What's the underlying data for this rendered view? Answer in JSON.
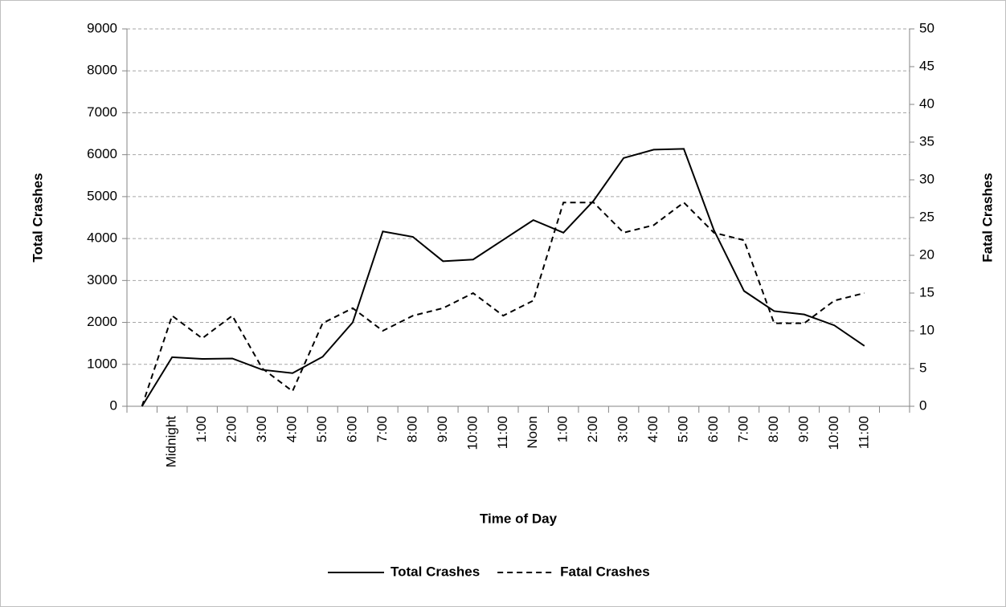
{
  "chart_data": {
    "type": "line",
    "x_label": "Time of Day",
    "y_label": "Total Crashes",
    "y2_label": "Fatal Crashes",
    "categories": [
      null,
      "Midnight",
      "1:00",
      "2:00",
      "3:00",
      "4:00",
      "5:00",
      "6:00",
      "7:00",
      "8:00",
      "9:00",
      "10:00",
      "11:00",
      "Noon",
      "1:00",
      "2:00",
      "3:00",
      "4:00",
      "5:00",
      "6:00",
      "7:00",
      "8:00",
      "9:00",
      "10:00",
      "11:00",
      null
    ],
    "series": [
      {
        "name": "Total Crashes",
        "color": "#000000",
        "line_style": "solid",
        "values": [
          0,
          1170,
          1130,
          1140,
          870,
          790,
          1180,
          2000,
          4170,
          4040,
          3460,
          3500,
          3970,
          4440,
          4140,
          4900,
          5920,
          6120,
          6140,
          4200,
          2750,
          2270,
          2190,
          1930,
          1440,
          null
        ]
      },
      {
        "name": "Fatal Crashes",
        "color": "#000000",
        "line_style": "dashed",
        "axis": "y2",
        "values": [
          0,
          12,
          9,
          12,
          5,
          2,
          11,
          13,
          10,
          12,
          13,
          15,
          12,
          14,
          27,
          27,
          23,
          24,
          27,
          23,
          22,
          11,
          11,
          14,
          15,
          null
        ]
      }
    ],
    "ylim": [
      0,
      9000
    ],
    "yticks": [
      0,
      1000,
      2000,
      3000,
      4000,
      5000,
      6000,
      7000,
      8000,
      9000
    ],
    "y2lim": [
      0,
      50
    ],
    "y2ticks": [
      0,
      5,
      10,
      15,
      20,
      25,
      30,
      35,
      40,
      45,
      50
    ],
    "grid": true,
    "legend": "bottom"
  }
}
